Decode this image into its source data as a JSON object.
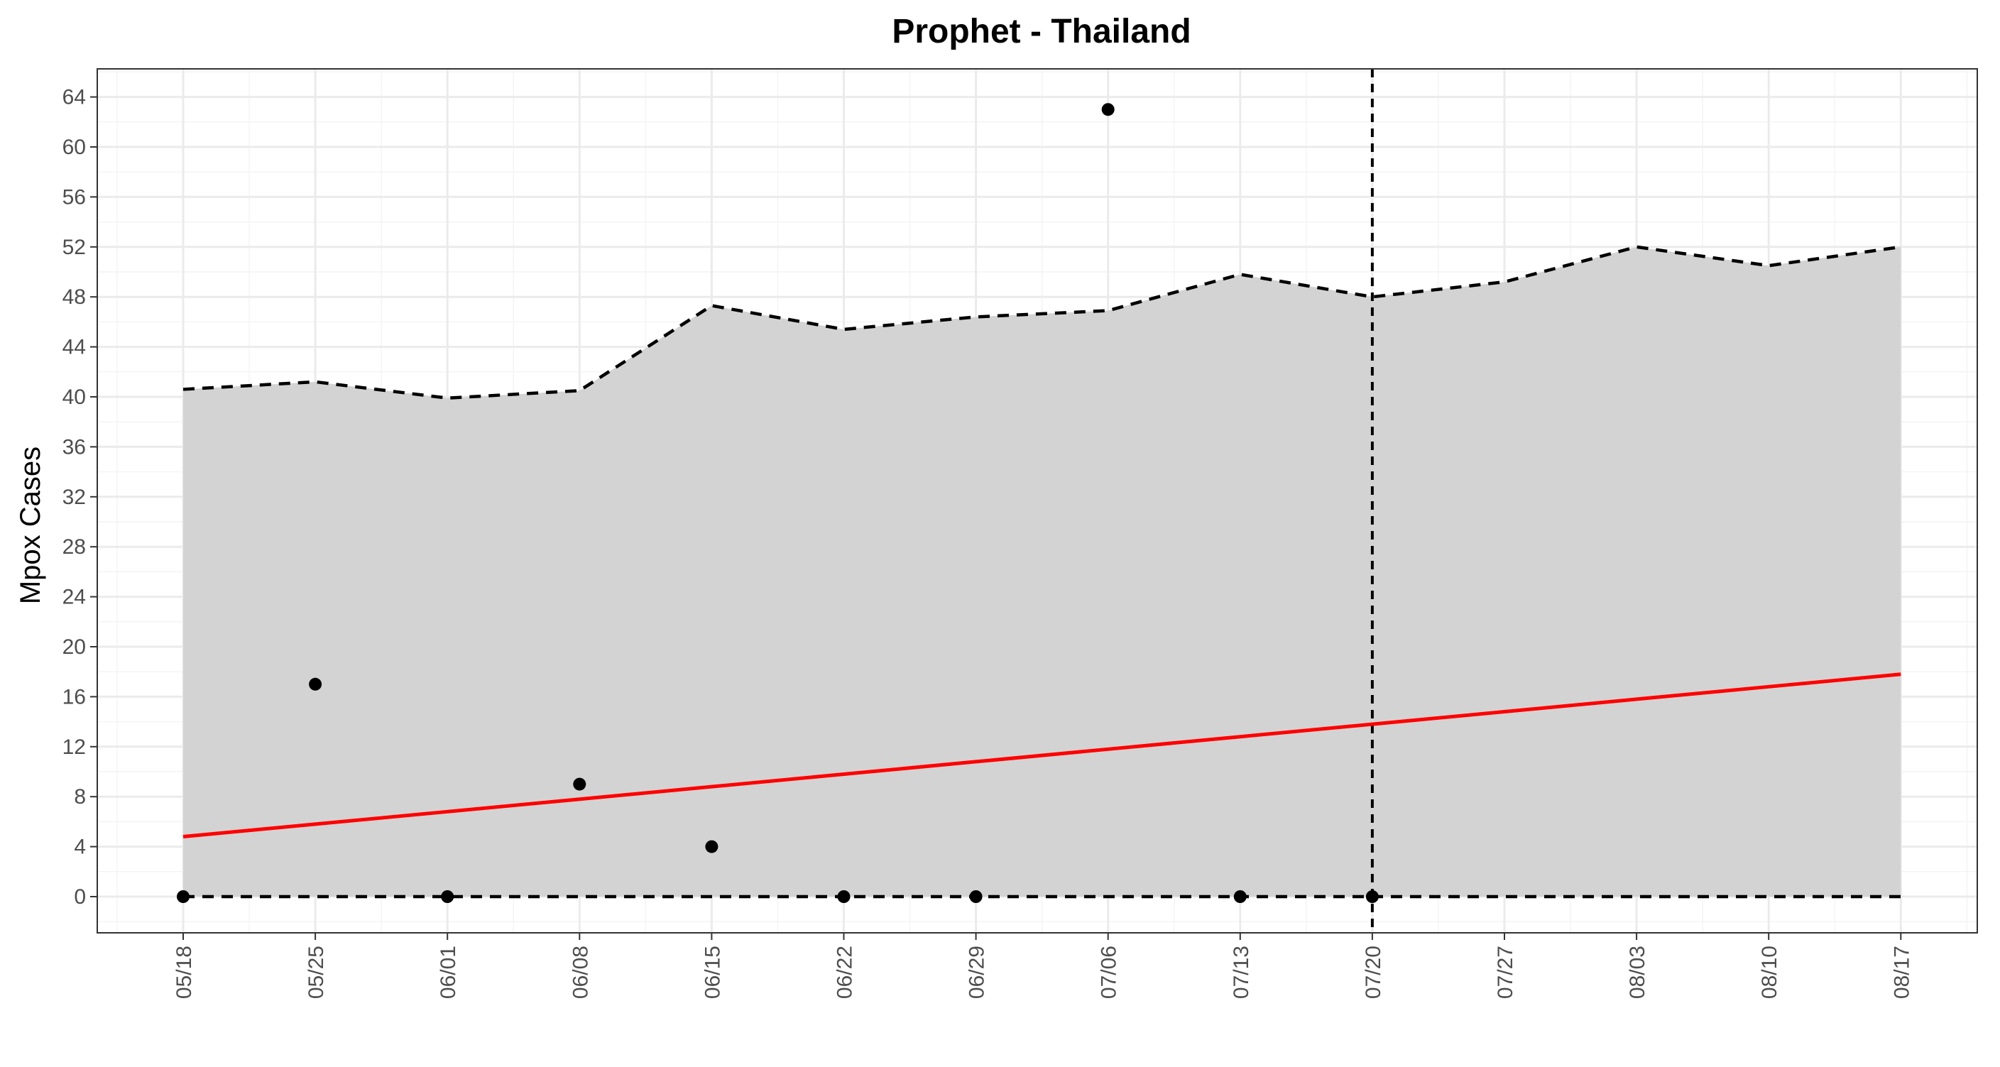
{
  "chart_data": {
    "type": "line",
    "title": "Prophet - Thailand",
    "xlabel": "",
    "ylabel": "Mpox Cases",
    "x": [
      "05/18",
      "05/25",
      "06/01",
      "06/08",
      "06/15",
      "06/22",
      "06/29",
      "07/06",
      "07/13",
      "07/20",
      "07/27",
      "08/03",
      "08/10",
      "08/17"
    ],
    "ylim": [
      -3,
      66.2
    ],
    "yticks": [
      0,
      4,
      8,
      12,
      16,
      20,
      24,
      28,
      32,
      36,
      40,
      44,
      48,
      52,
      56,
      60,
      64
    ],
    "grid": true,
    "observed": [
      0,
      17,
      0,
      9,
      4,
      0,
      0,
      63,
      0,
      0
    ],
    "forecast": [
      4.8,
      5.8,
      6.8,
      7.8,
      8.8,
      9.8,
      10.8,
      11.8,
      12.8,
      13.8,
      14.8,
      15.8,
      16.8,
      17.8
    ],
    "upper": [
      40.6,
      41.2,
      39.9,
      40.5,
      47.3,
      45.4,
      46.4,
      46.9,
      49.8,
      48.0,
      49.2,
      52.0,
      50.5,
      52.0
    ],
    "lower": [
      0,
      0,
      0,
      0,
      0,
      0,
      0,
      0,
      0,
      0,
      0,
      0,
      0,
      0
    ],
    "cutoff": "07/20",
    "colors": {
      "interval_fill": "#d3d3d3",
      "forecast_line": "#ff0000",
      "points": "#000000",
      "bounds": "#000000",
      "grid_major": "#ebebeb",
      "grid_minor": "#f4f4f4",
      "panel_border": "#333333"
    }
  }
}
